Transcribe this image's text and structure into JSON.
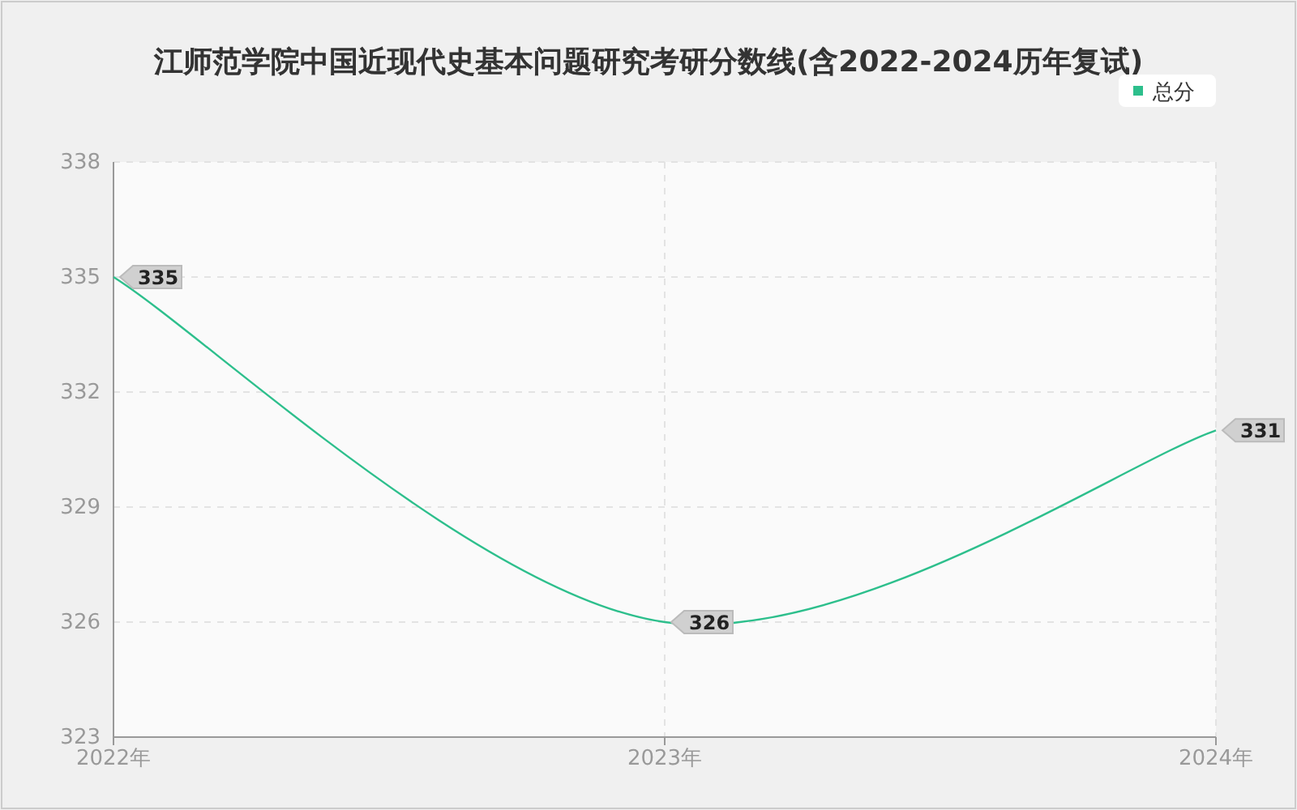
{
  "chart_data": {
    "type": "line",
    "title": "江师范学院中国近现代史基本问题研究考研分数线(含2022-2024历年复试)",
    "categories": [
      "2022年",
      "2023年",
      "2024年"
    ],
    "series": [
      {
        "name": "总分",
        "color": "#2dbf8c",
        "values": [
          335,
          326,
          331
        ]
      }
    ],
    "ylim": [
      323,
      338
    ],
    "yticks": [
      323,
      326,
      329,
      332,
      335,
      338
    ],
    "grid": true,
    "legend": "top right",
    "data_labels": true,
    "marker": "none"
  }
}
